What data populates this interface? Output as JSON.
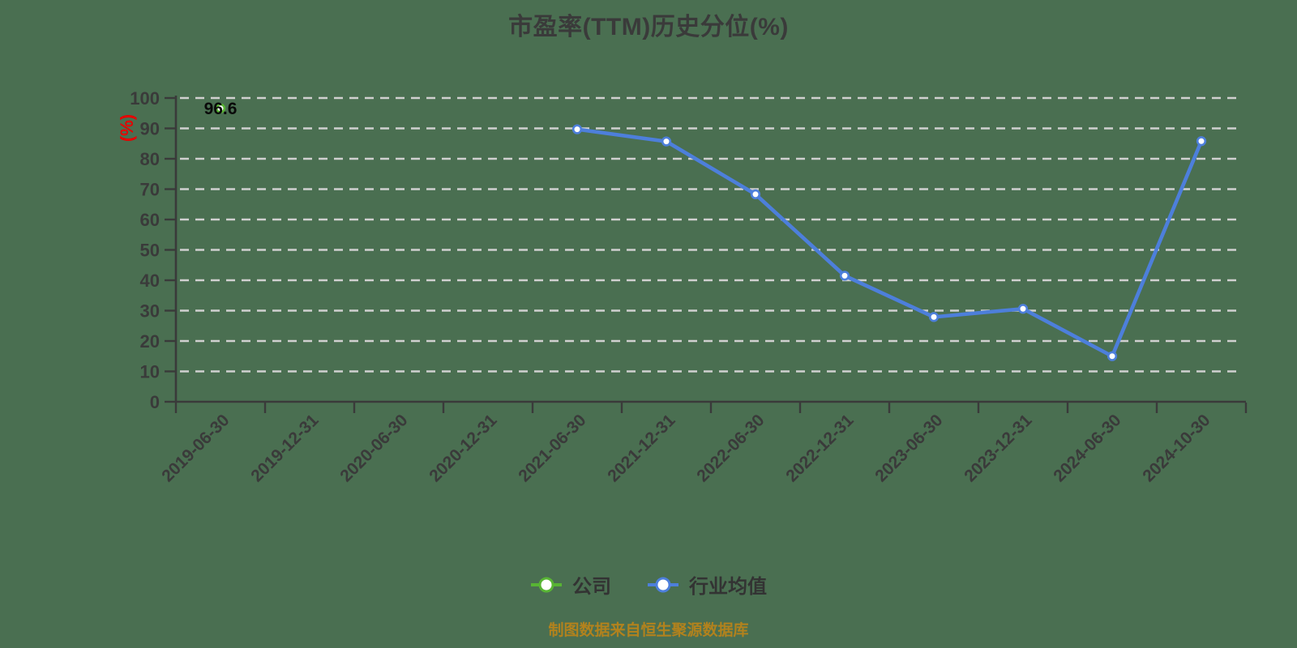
{
  "title": "市盈率(TTM)历史分位(%)",
  "footer": "制图数据来自恒生聚源数据库",
  "colors": {
    "background": "#4a6f51",
    "grid": "#d0d0d0",
    "axis": "#3a3a3a",
    "tick_label": "#3a3a3a",
    "title": "#3a3a3a",
    "company_green": "#58b434",
    "industry_blue": "#4d7fdb",
    "ylabel_red": "#e60000",
    "value_label": "#0a0a0a",
    "footer_orange": "#b2821d",
    "marker_fill": "#ffffff"
  },
  "legend": {
    "items": [
      {
        "label": "公司",
        "color": "#58b434"
      },
      {
        "label": "行业均值",
        "color": "#4d7fdb"
      }
    ]
  },
  "chart_data": {
    "type": "line",
    "title": "市盈率(TTM)历史分位(%)",
    "xlabel": "",
    "ylabel": "(%)",
    "ylim": [
      0,
      100
    ],
    "y_ticks": [
      0,
      10,
      20,
      30,
      40,
      50,
      60,
      70,
      80,
      90,
      100
    ],
    "grid": "horizontal-dashed",
    "legend_position": "bottom-center",
    "categories": [
      "2019-06-30",
      "2019-12-31",
      "2020-06-30",
      "2020-12-31",
      "2021-06-30",
      "2021-12-31",
      "2022-06-30",
      "2022-12-31",
      "2023-06-30",
      "2023-12-31",
      "2024-06-30",
      "2024-10-30"
    ],
    "series": [
      {
        "name": "公司",
        "color": "#58b434",
        "show_value_labels": true,
        "values": [
          96.6,
          null,
          null,
          null,
          null,
          null,
          null,
          null,
          null,
          null,
          null,
          null
        ]
      },
      {
        "name": "行业均值",
        "color": "#4d7fdb",
        "show_value_labels": false,
        "values": [
          null,
          null,
          null,
          null,
          89.7,
          85.7,
          68.3,
          41.5,
          27.9,
          30.6,
          15,
          85.8
        ]
      }
    ],
    "annotations": [
      {
        "text": "96.6",
        "series": "公司",
        "category": "2019-06-30"
      }
    ]
  }
}
